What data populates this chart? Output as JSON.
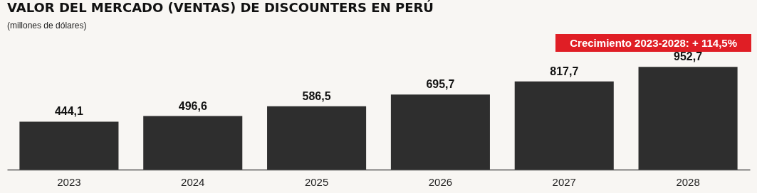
{
  "chart_data": {
    "type": "bar",
    "title": "VALOR DEL MERCADO (VENTAS) DE DISCOUNTERS EN PERÚ",
    "subtitle": "(millones de dólares)",
    "categories": [
      "2023",
      "2024",
      "2025",
      "2026",
      "2027",
      "2028"
    ],
    "values": [
      444.1,
      496.6,
      586.5,
      695.7,
      817.7,
      952.7
    ],
    "color": "#2e2e2e",
    "value_labels": [
      "444,1",
      "496,6",
      "586,5",
      "695,7",
      "817,7",
      "952,7"
    ],
    "grid": false,
    "annotations": [
      "Crecimiento 2023-2028: + 114,5%"
    ]
  }
}
